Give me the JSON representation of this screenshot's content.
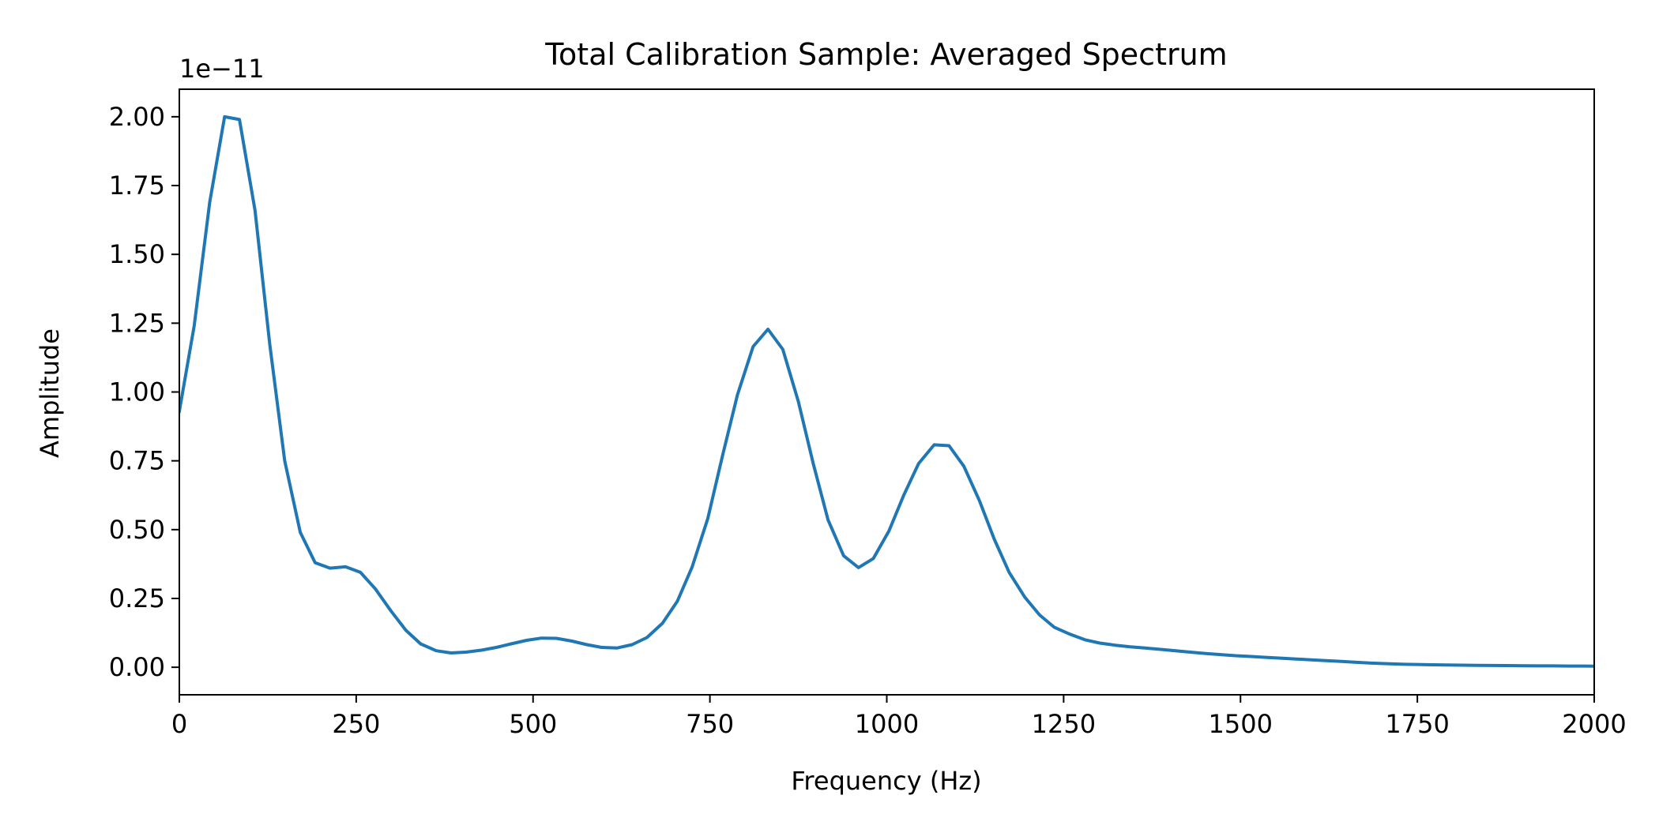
{
  "chart_data": {
    "type": "line",
    "title": "Total Calibration Sample: Averaged Spectrum",
    "xlabel": "Frequency (Hz)",
    "ylabel": "Amplitude",
    "y_offset_label": "1e−11",
    "y_scale_exponent": -11,
    "xlim": [
      0,
      2000
    ],
    "ylim": [
      -0.1,
      2.1
    ],
    "xticks": [
      0,
      250,
      500,
      750,
      1000,
      1250,
      1500,
      1750,
      2000
    ],
    "xtick_labels": [
      "0",
      "250",
      "500",
      "750",
      "1000",
      "1250",
      "1500",
      "1750",
      "2000"
    ],
    "yticks": [
      0.0,
      0.25,
      0.5,
      0.75,
      1.0,
      1.25,
      1.5,
      1.75,
      2.0
    ],
    "ytick_labels": [
      "0.00",
      "0.25",
      "0.50",
      "0.75",
      "1.00",
      "1.25",
      "1.50",
      "1.75",
      "2.00"
    ],
    "grid": false,
    "legend": "none",
    "series": [
      {
        "color": "#1f77b4",
        "points": [
          [
            0,
            0.93
          ],
          [
            21,
            1.24
          ],
          [
            43,
            1.69
          ],
          [
            64,
            2.0
          ],
          [
            85,
            1.99
          ],
          [
            107,
            1.66
          ],
          [
            128,
            1.17
          ],
          [
            149,
            0.75
          ],
          [
            171,
            0.49
          ],
          [
            192,
            0.38
          ],
          [
            213,
            0.36
          ],
          [
            235,
            0.365
          ],
          [
            256,
            0.345
          ],
          [
            277,
            0.285
          ],
          [
            299,
            0.205
          ],
          [
            320,
            0.135
          ],
          [
            341,
            0.085
          ],
          [
            363,
            0.06
          ],
          [
            384,
            0.052
          ],
          [
            405,
            0.055
          ],
          [
            427,
            0.062
          ],
          [
            448,
            0.072
          ],
          [
            469,
            0.085
          ],
          [
            491,
            0.098
          ],
          [
            512,
            0.106
          ],
          [
            533,
            0.105
          ],
          [
            555,
            0.095
          ],
          [
            576,
            0.082
          ],
          [
            597,
            0.072
          ],
          [
            619,
            0.07
          ],
          [
            640,
            0.082
          ],
          [
            661,
            0.108
          ],
          [
            683,
            0.16
          ],
          [
            704,
            0.24
          ],
          [
            725,
            0.365
          ],
          [
            747,
            0.54
          ],
          [
            768,
            0.77
          ],
          [
            789,
            0.99
          ],
          [
            811,
            1.165
          ],
          [
            832,
            1.228
          ],
          [
            853,
            1.155
          ],
          [
            875,
            0.965
          ],
          [
            896,
            0.74
          ],
          [
            917,
            0.535
          ],
          [
            939,
            0.405
          ],
          [
            960,
            0.362
          ],
          [
            981,
            0.395
          ],
          [
            1003,
            0.495
          ],
          [
            1024,
            0.625
          ],
          [
            1045,
            0.74
          ],
          [
            1067,
            0.808
          ],
          [
            1088,
            0.805
          ],
          [
            1109,
            0.73
          ],
          [
            1131,
            0.605
          ],
          [
            1152,
            0.465
          ],
          [
            1173,
            0.345
          ],
          [
            1195,
            0.255
          ],
          [
            1216,
            0.19
          ],
          [
            1237,
            0.145
          ],
          [
            1259,
            0.12
          ],
          [
            1280,
            0.1
          ],
          [
            1301,
            0.088
          ],
          [
            1323,
            0.08
          ],
          [
            1344,
            0.074
          ],
          [
            1365,
            0.07
          ],
          [
            1387,
            0.065
          ],
          [
            1408,
            0.06
          ],
          [
            1429,
            0.055
          ],
          [
            1451,
            0.05
          ],
          [
            1472,
            0.046
          ],
          [
            1493,
            0.042
          ],
          [
            1515,
            0.039
          ],
          [
            1536,
            0.036
          ],
          [
            1557,
            0.033
          ],
          [
            1579,
            0.03
          ],
          [
            1600,
            0.027
          ],
          [
            1621,
            0.024
          ],
          [
            1643,
            0.021
          ],
          [
            1664,
            0.018
          ],
          [
            1685,
            0.015
          ],
          [
            1707,
            0.013
          ],
          [
            1728,
            0.011
          ],
          [
            1749,
            0.01
          ],
          [
            1771,
            0.009
          ],
          [
            1792,
            0.008
          ],
          [
            1813,
            0.0075
          ],
          [
            1835,
            0.007
          ],
          [
            1856,
            0.0065
          ],
          [
            1877,
            0.006
          ],
          [
            1899,
            0.0055
          ],
          [
            1920,
            0.005
          ],
          [
            1941,
            0.005
          ],
          [
            1963,
            0.0045
          ],
          [
            1984,
            0.0045
          ],
          [
            2000,
            0.004
          ]
        ]
      }
    ]
  }
}
